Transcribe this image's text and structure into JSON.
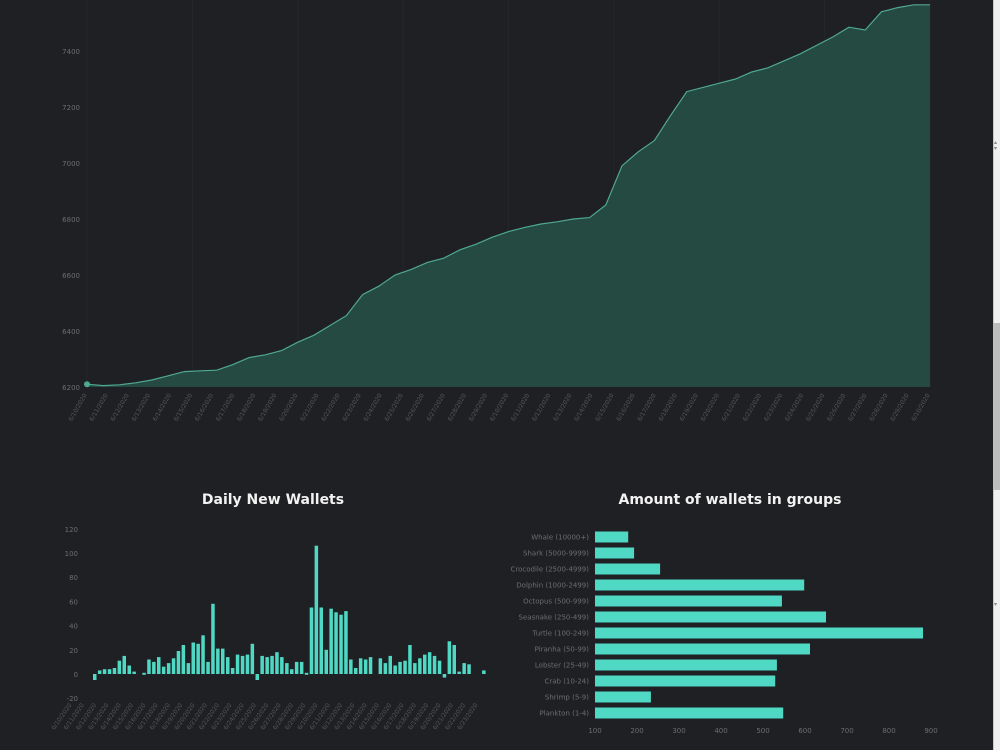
{
  "colors": {
    "background": "#1f2023",
    "area_fill": "#254a42",
    "area_line": "#4fa891",
    "bar": "#4fd8c4",
    "axis_text": "#6b6d72"
  },
  "chart_data": [
    {
      "type": "area",
      "title": "",
      "xlabel": "",
      "ylabel": "",
      "ylim": [
        6200,
        7600
      ],
      "yticks": [
        6200,
        6400,
        6600,
        6800,
        7000,
        7200,
        7400
      ],
      "grid": false,
      "x_tick_count": 41,
      "x_tick_format": "date (m/d/2020), rotated -60°",
      "points": [
        [
          0,
          6210
        ],
        [
          1,
          6205
        ],
        [
          2,
          6208
        ],
        [
          3,
          6215
        ],
        [
          4,
          6225
        ],
        [
          5,
          6240
        ],
        [
          6,
          6255
        ],
        [
          7,
          6258
        ],
        [
          8,
          6260
        ],
        [
          9,
          6280
        ],
        [
          10,
          6305
        ],
        [
          11,
          6315
        ],
        [
          12,
          6330
        ],
        [
          13,
          6360
        ],
        [
          14,
          6385
        ],
        [
          15,
          6420
        ],
        [
          16,
          6455
        ],
        [
          17,
          6530
        ],
        [
          18,
          6560
        ],
        [
          19,
          6600
        ],
        [
          20,
          6620
        ],
        [
          21,
          6645
        ],
        [
          22,
          6660
        ],
        [
          23,
          6690
        ],
        [
          24,
          6710
        ],
        [
          25,
          6735
        ],
        [
          26,
          6755
        ],
        [
          27,
          6770
        ],
        [
          28,
          6782
        ],
        [
          29,
          6790
        ],
        [
          30,
          6800
        ],
        [
          31,
          6805
        ],
        [
          32,
          6850
        ],
        [
          33,
          6990
        ],
        [
          34,
          7040
        ],
        [
          35,
          7080
        ],
        [
          36,
          7170
        ],
        [
          37,
          7255
        ],
        [
          38,
          7270
        ],
        [
          39,
          7285
        ],
        [
          40,
          7300
        ],
        [
          41,
          7325
        ],
        [
          42,
          7340
        ],
        [
          43,
          7365
        ],
        [
          44,
          7390
        ],
        [
          45,
          7420
        ],
        [
          46,
          7450
        ],
        [
          47,
          7485
        ],
        [
          48,
          7475
        ],
        [
          49,
          7540
        ],
        [
          50,
          7555
        ],
        [
          51,
          7565
        ],
        [
          52,
          7565
        ]
      ]
    },
    {
      "type": "bar",
      "title": "Daily New Wallets",
      "xlabel": "",
      "ylabel": "",
      "ylim": [
        -20,
        120
      ],
      "yticks": [
        -20,
        0,
        20,
        40,
        60,
        80,
        100,
        120
      ],
      "grid": false,
      "x_tick_format": "date (m/d/2020), rotated -60°",
      "values": [
        -5,
        3,
        4,
        4,
        5,
        11,
        15,
        7,
        2,
        0,
        1,
        12,
        10,
        14,
        6,
        9,
        13,
        19,
        24,
        9,
        26,
        25,
        32,
        10,
        58,
        21,
        21,
        14,
        5,
        16,
        15,
        16,
        25,
        -5,
        15,
        14,
        15,
        18,
        14,
        9,
        4,
        10,
        10,
        1,
        55,
        106,
        55,
        20,
        54,
        51,
        49,
        52,
        12,
        5,
        13,
        12,
        14,
        0,
        13,
        9,
        15,
        7,
        10,
        11,
        24,
        9,
        13,
        16,
        18,
        15,
        11,
        -3,
        27,
        24,
        2,
        9,
        8,
        0,
        0,
        3
      ]
    },
    {
      "type": "bar",
      "orientation": "horizontal",
      "title": "Amount of wallets in groups",
      "xlabel": "",
      "ylabel": "",
      "xlim": [
        100,
        900
      ],
      "xticks": [
        100,
        200,
        300,
        400,
        500,
        600,
        700,
        800,
        900
      ],
      "grid": false,
      "categories": [
        "Whale (10000+)",
        "Shark (5000-9999)",
        "Crocodile (2500-4999)",
        "Dolphin (1000-2499)",
        "Octopus (500-999)",
        "Seasnake (250-499)",
        "Turtle (100-249)",
        "Piranha (50-99)",
        "Lobster (25-49)",
        "Crab (10-24)",
        "Shrimp (5-9)",
        "Plankton (1-4)"
      ],
      "values": [
        179,
        193,
        255,
        598,
        545,
        650,
        881,
        612,
        533,
        529,
        233,
        548
      ]
    }
  ],
  "titles": {
    "daily": "Daily New Wallets",
    "groups": "Amount of wallets in groups"
  }
}
